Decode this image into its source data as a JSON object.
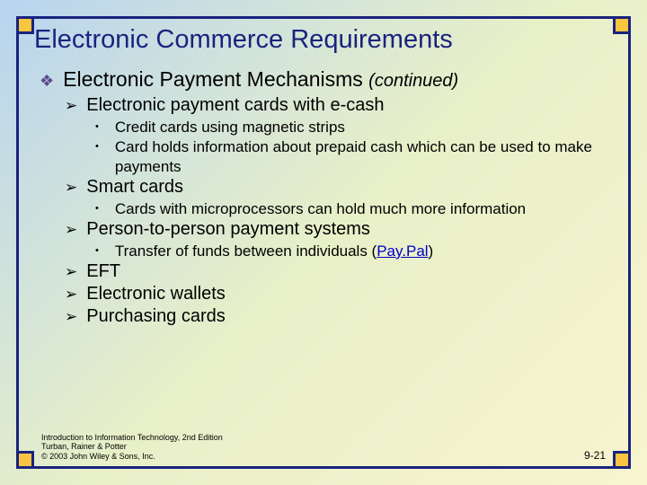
{
  "colors": {
    "frame_border": "#1a237e",
    "corner_fill": "#f9c440",
    "title_color": "#1a237e",
    "lvl1_bullet": "#5a4a8a",
    "link_color": "#0000cc",
    "bg_gradient_start": "#b8d4f0",
    "bg_gradient_mid": "#e8f0c8",
    "bg_gradient_end": "#f8f4d0"
  },
  "title": "Electronic Commerce Requirements",
  "lvl1": {
    "text": "Electronic Payment Mechanisms ",
    "continued": "(continued)"
  },
  "sections": [
    {
      "heading": "Electronic payment cards with e-cash",
      "items": [
        "Credit cards using magnetic strips",
        "Card holds information about prepaid cash which can be used to make payments"
      ]
    },
    {
      "heading": "Smart cards",
      "items": [
        "Cards with microprocessors can hold much more information"
      ]
    },
    {
      "heading": "Person-to-person payment systems",
      "items_html": [
        {
          "pre": "Transfer of funds between individuals (",
          "link": "Pay.Pal",
          "post": ")"
        }
      ]
    },
    {
      "heading": "EFT",
      "items": []
    },
    {
      "heading": "Electronic wallets",
      "items": []
    },
    {
      "heading": "Purchasing cards",
      "items": []
    }
  ],
  "footer": {
    "line1": "Introduction to Information Technology, 2nd Edition",
    "line2": "Turban, Rainer & Potter",
    "line3": "© 2003 John Wiley & Sons, Inc.",
    "page": "9-21"
  }
}
